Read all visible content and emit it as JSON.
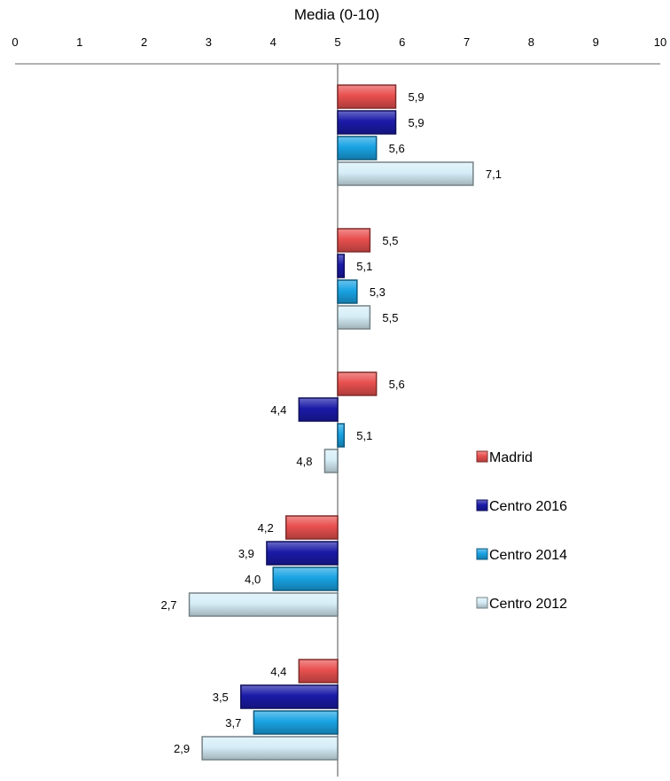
{
  "chart_data": {
    "type": "bar",
    "orientation": "horizontal",
    "title": "Media (0-10)",
    "xlim": [
      0,
      10
    ],
    "x_ticks": [
      "0",
      "1",
      "2",
      "3",
      "4",
      "5",
      "6",
      "7",
      "8",
      "9",
      "10"
    ],
    "reference_line": 5,
    "axis_position": "top",
    "grid": false,
    "legend_position": "right",
    "group_count": 5,
    "series": [
      {
        "name": "Madrid",
        "color": "#e8504f",
        "values": [
          5.9,
          5.5,
          5.6,
          4.2,
          4.4
        ],
        "labels": [
          "5,9",
          "5,5",
          "5,6",
          "4,2",
          "4,4"
        ]
      },
      {
        "name": "Centro 2016",
        "color": "#1a1aa8",
        "values": [
          5.9,
          5.1,
          4.4,
          3.9,
          3.5
        ],
        "labels": [
          "5,9",
          "5,1",
          "4,4",
          "3,9",
          "3,5"
        ]
      },
      {
        "name": "Centro 2014",
        "color": "#19a3e3",
        "values": [
          5.6,
          5.3,
          5.1,
          4.0,
          3.7
        ],
        "labels": [
          "5,6",
          "5,3",
          "5,1",
          "4,0",
          "3,7"
        ]
      },
      {
        "name": "Centro 2012",
        "color": "#d6eef8",
        "values": [
          7.1,
          5.5,
          4.8,
          2.7,
          2.9
        ],
        "labels": [
          "7,1",
          "5,5",
          "4,8",
          "2,7",
          "2,9"
        ]
      }
    ]
  }
}
